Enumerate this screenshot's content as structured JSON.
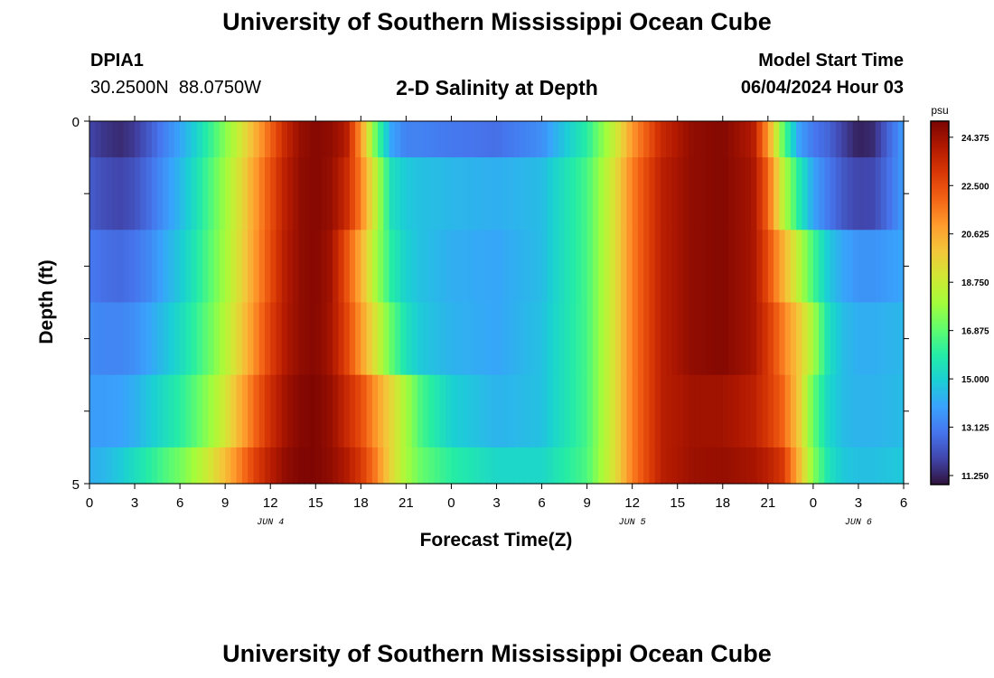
{
  "header": {
    "title": "University of Southern Mississippi Ocean Cube",
    "station_id": "DPIA1",
    "station_coords": "30.2500N  88.0750W",
    "subtitle": "2-D Salinity at Depth",
    "model_start_label": "Model Start Time",
    "model_start_value": "06/04/2024 Hour 03"
  },
  "footer": {
    "title": "University of Southern Mississippi Ocean Cube"
  },
  "chart_data": {
    "type": "heatmap",
    "xlabel": "Forecast Time(Z)",
    "ylabel": "Depth (ft)",
    "xlim_hours": [
      0,
      54
    ],
    "ylim": [
      0,
      5
    ],
    "x_tick_labels": [
      "0",
      "3",
      "6",
      "9",
      "12",
      "15",
      "18",
      "21",
      "0",
      "3",
      "6",
      "9",
      "12",
      "15",
      "18",
      "21",
      "0",
      "3",
      "6"
    ],
    "date_labels": [
      {
        "text": "JUN 4",
        "hour": 12
      },
      {
        "text": "JUN 5",
        "hour": 36
      },
      {
        "text": "JUN 6",
        "hour": 51
      }
    ],
    "y_tick_labels": [
      "0",
      "5"
    ],
    "colorbar": {
      "unit": "psu",
      "min": 10.9,
      "max": 25.0,
      "tick_values": [
        11.25,
        13.125,
        15.0,
        16.875,
        18.75,
        20.625,
        22.5,
        24.375
      ],
      "tick_labels": [
        "11.250",
        "13.125",
        "15.000",
        "16.875",
        "18.750",
        "20.625",
        "22.500",
        "24.375"
      ],
      "colors": [
        "#30123b",
        "#4145ab",
        "#4675ed",
        "#39a2fc",
        "#1bcfd4",
        "#24eca6",
        "#61fc6c",
        "#a4fc3b",
        "#d1e834",
        "#f3c63a",
        "#fe9b2d",
        "#f36315",
        "#d93806",
        "#b11901",
        "#7a0402"
      ]
    },
    "layers": [
      {
        "depth_range": [
          0,
          0.5
        ],
        "hours": [
          0,
          1,
          2,
          3,
          4,
          5,
          6,
          7,
          8,
          9,
          10,
          11,
          12,
          13,
          14,
          15,
          16,
          17,
          18,
          19,
          20,
          21,
          22,
          24,
          27,
          30,
          33,
          35,
          36,
          38,
          40,
          42,
          44,
          45,
          46,
          47,
          48,
          49,
          50,
          51,
          52,
          53,
          54
        ],
        "salinity": [
          11.9,
          11.6,
          11.4,
          11.7,
          12.4,
          13.2,
          14.0,
          15.0,
          16.2,
          17.5,
          18.9,
          20.5,
          22.0,
          23.5,
          24.5,
          24.8,
          24.6,
          24.0,
          21.0,
          17.0,
          14.0,
          13.2,
          13.2,
          13.0,
          12.8,
          13.5,
          16.0,
          19.0,
          21.0,
          23.5,
          24.6,
          24.8,
          24.0,
          21.0,
          17.0,
          14.0,
          13.0,
          12.6,
          11.8,
          11.2,
          11.4,
          12.6,
          13.8
        ]
      },
      {
        "depth_range": [
          0.5,
          1.5
        ],
        "hours": [
          0,
          1,
          2,
          3,
          4,
          5,
          6,
          7,
          8,
          9,
          10,
          11,
          12,
          13,
          14,
          15,
          16,
          17,
          18,
          19,
          20,
          21,
          22,
          24,
          27,
          30,
          33,
          35,
          36,
          38,
          40,
          42,
          44,
          45,
          46,
          47,
          48,
          49,
          50,
          51,
          52,
          53,
          54
        ],
        "salinity": [
          12.4,
          12.1,
          11.9,
          12.2,
          12.8,
          13.6,
          14.4,
          15.4,
          16.6,
          17.9,
          19.3,
          20.9,
          22.4,
          23.8,
          24.6,
          24.8,
          24.5,
          23.5,
          21.5,
          18.5,
          15.5,
          14.8,
          14.6,
          14.4,
          14.2,
          14.5,
          16.5,
          19.5,
          21.5,
          23.8,
          24.6,
          24.8,
          24.2,
          22.0,
          18.5,
          16.0,
          14.0,
          13.0,
          12.3,
          11.9,
          12.0,
          12.8,
          13.8
        ]
      },
      {
        "depth_range": [
          1.5,
          2.5
        ],
        "hours": [
          0,
          1,
          2,
          3,
          4,
          5,
          6,
          7,
          8,
          9,
          10,
          11,
          12,
          13,
          14,
          15,
          16,
          17,
          18,
          19,
          20,
          21,
          22,
          24,
          27,
          30,
          33,
          35,
          36,
          38,
          40,
          42,
          44,
          45,
          46,
          47,
          48,
          49,
          50,
          51,
          52,
          53,
          54
        ],
        "salinity": [
          13.0,
          12.8,
          12.7,
          12.9,
          13.4,
          14.1,
          14.8,
          15.7,
          16.8,
          18.0,
          19.4,
          21.0,
          22.5,
          23.9,
          24.6,
          24.8,
          24.3,
          22.5,
          20.5,
          18.0,
          16.0,
          15.0,
          14.6,
          14.2,
          14.0,
          14.5,
          16.5,
          19.5,
          21.5,
          23.8,
          24.6,
          24.8,
          24.2,
          22.5,
          20.5,
          18.5,
          16.5,
          14.8,
          14.0,
          13.6,
          13.6,
          13.8,
          14.0
        ]
      },
      {
        "depth_range": [
          2.5,
          3.5
        ],
        "hours": [
          0,
          1,
          2,
          3,
          4,
          5,
          6,
          7,
          8,
          9,
          10,
          11,
          12,
          13,
          14,
          15,
          16,
          17,
          18,
          19,
          20,
          21,
          22,
          24,
          27,
          30,
          33,
          35,
          36,
          38,
          40,
          42,
          44,
          45,
          46,
          47,
          48,
          49,
          50,
          51,
          52,
          53,
          54
        ],
        "salinity": [
          13.4,
          13.3,
          13.3,
          13.5,
          14.0,
          14.6,
          15.3,
          16.1,
          17.1,
          18.3,
          19.7,
          21.3,
          22.8,
          24.0,
          24.6,
          24.8,
          24.2,
          22.8,
          21.0,
          19.0,
          17.0,
          15.5,
          14.8,
          14.3,
          14.0,
          14.6,
          16.5,
          19.5,
          21.5,
          23.8,
          24.6,
          24.8,
          24.2,
          23.0,
          21.5,
          20.0,
          18.0,
          15.5,
          14.5,
          14.2,
          14.2,
          14.3,
          14.4
        ]
      },
      {
        "depth_range": [
          3.5,
          4.5
        ],
        "hours": [
          0,
          1,
          2,
          3,
          4,
          5,
          6,
          7,
          8,
          9,
          10,
          11,
          12,
          13,
          14,
          15,
          16,
          17,
          18,
          19,
          20,
          21,
          22,
          24,
          27,
          30,
          33,
          35,
          36,
          38,
          40,
          42,
          44,
          45,
          46,
          47,
          48,
          49,
          50,
          51,
          52,
          53,
          54
        ],
        "salinity": [
          13.8,
          13.8,
          13.9,
          14.2,
          14.8,
          15.4,
          16.0,
          16.8,
          17.8,
          19.0,
          20.5,
          22.0,
          23.3,
          24.3,
          24.8,
          24.9,
          24.5,
          23.5,
          22.5,
          21.0,
          19.5,
          18.0,
          16.5,
          15.0,
          14.3,
          14.6,
          16.5,
          19.5,
          21.5,
          23.8,
          24.3,
          24.3,
          23.8,
          23.0,
          22.0,
          20.0,
          17.0,
          15.2,
          14.5,
          14.3,
          14.3,
          14.4,
          14.5
        ]
      },
      {
        "depth_range": [
          4.5,
          5
        ],
        "hours": [
          0,
          1,
          2,
          3,
          4,
          5,
          6,
          7,
          8,
          9,
          10,
          11,
          12,
          13,
          14,
          15,
          16,
          17,
          18,
          19,
          20,
          21,
          22,
          24,
          27,
          30,
          33,
          35,
          36,
          38,
          40,
          42,
          44,
          45,
          46,
          47,
          48,
          49,
          50,
          51,
          52,
          53,
          54
        ],
        "salinity": [
          14.2,
          14.4,
          14.8,
          15.4,
          16.0,
          16.6,
          17.2,
          18.0,
          19.0,
          20.2,
          21.5,
          22.8,
          23.8,
          24.6,
          24.9,
          24.9,
          24.6,
          24.0,
          23.0,
          21.5,
          19.5,
          18.0,
          17.0,
          16.0,
          15.2,
          15.2,
          16.6,
          19.5,
          21.5,
          23.8,
          24.4,
          24.5,
          24.2,
          23.8,
          23.0,
          20.5,
          17.5,
          15.6,
          14.8,
          14.6,
          14.6,
          14.7,
          14.8
        ]
      }
    ]
  }
}
